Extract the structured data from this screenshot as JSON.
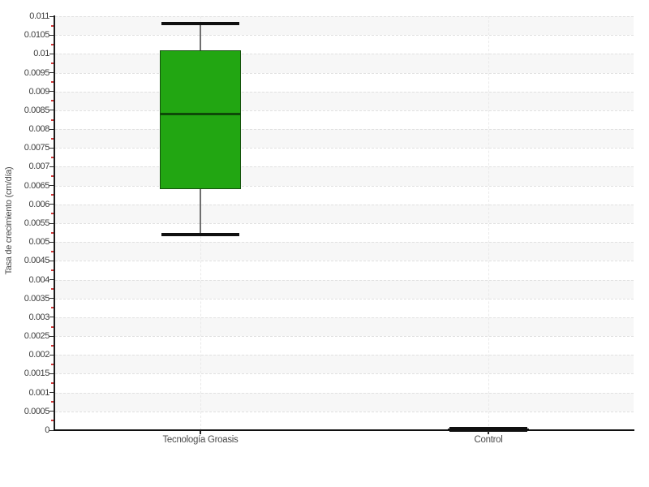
{
  "chart_data": {
    "type": "box",
    "title": "",
    "xlabel": "",
    "ylabel": "Tasa de crecimiento (cm/día)",
    "categories": [
      "Tecnología Groasis",
      "Control"
    ],
    "series": [
      {
        "name": "Tecnología Groasis",
        "min": 0.0052,
        "q1": 0.0064,
        "median": 0.0084,
        "q3": 0.0101,
        "max": 0.0108,
        "fill": "#22a612",
        "edge": "#14520c",
        "median_color": "#0e4a08"
      },
      {
        "name": "Control",
        "min": 0.0,
        "q1": 1e-05,
        "median": 2e-05,
        "q3": 3e-05,
        "max": 4e-05,
        "fill": "#111111",
        "edge": "#111111",
        "median_color": "#111111"
      }
    ],
    "ylim": [
      0,
      0.011
    ],
    "ytick_step": 0.0005,
    "ytick_labels": [
      "0",
      "0.0005",
      "0.001",
      "0.0015",
      "0.002",
      "0.0025",
      "0.003",
      "0.0035",
      "0.004",
      "0.0045",
      "0.005",
      "0.0055",
      "0.006",
      "0.0065",
      "0.007",
      "0.0075",
      "0.008",
      "0.0085",
      "0.009",
      "0.0095",
      "0.01",
      "0.0105",
      "0.011"
    ],
    "legend": "none",
    "grid": {
      "horizontal": "dashed at every 0.0005",
      "vertical": "dashed at category centers",
      "bands": "alternating white / light-gray horizontal bands every 0.0005",
      "minor_ticks": "small red y-axis ticks at 0.00025 midpoints"
    }
  },
  "colors": {
    "background": "#ffffff",
    "band_gray": "#f7f7f7",
    "grid_dash": "#e1e1e1",
    "spine": "#1b1b1b",
    "tick_label": "#3d3d3d",
    "minor_tick_red": "#d23a3a",
    "box_green": "#22a612",
    "whisker_cap_black": "#101010",
    "stem_gray": "#6f6f6f"
  }
}
